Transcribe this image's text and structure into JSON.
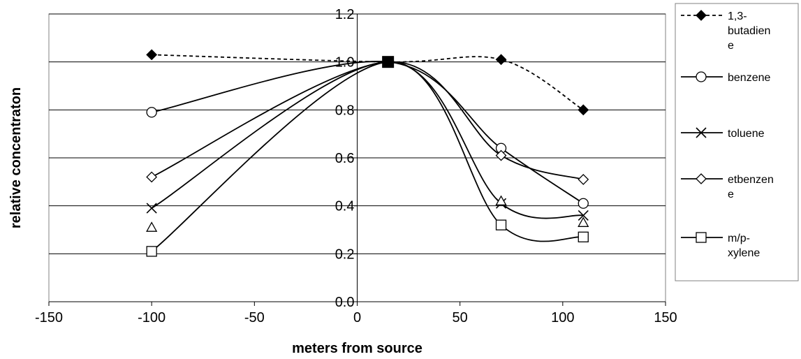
{
  "chart_data": {
    "type": "line",
    "title": "",
    "xlabel": "meters from source",
    "ylabel": "relative concentraton",
    "xlim": [
      -150,
      150
    ],
    "ylim": [
      0,
      1.2
    ],
    "x_ticks": [
      "-150",
      "-100",
      "-50",
      "0",
      "50",
      "100",
      "150"
    ],
    "y_ticks": [
      "0.0",
      "0.2",
      "0.4",
      "0.6",
      "0.8",
      "1.0",
      "1.2"
    ],
    "grid": "horizontal",
    "legend_position": "right",
    "x": [
      -100,
      15,
      70,
      110
    ],
    "series": [
      {
        "name": "1,3-butadiene",
        "legend_lines": [
          "1,3-",
          "butadien",
          "e"
        ],
        "marker": "filled-diamond",
        "dashed": true,
        "values": [
          1.03,
          1.0,
          1.01,
          0.8
        ]
      },
      {
        "name": "benzene",
        "legend_lines": [
          "benzene"
        ],
        "marker": "circle",
        "dashed": false,
        "values": [
          0.79,
          1.0,
          0.64,
          0.41
        ]
      },
      {
        "name": "toluene",
        "legend_lines": [
          "toluene"
        ],
        "marker": "x",
        "dashed": false,
        "values": [
          0.39,
          1.0,
          0.41,
          0.36
        ]
      },
      {
        "name": "etbenzene",
        "legend_lines": [
          "etbenzen",
          "e"
        ],
        "marker": "diamond",
        "dashed": false,
        "values": [
          0.52,
          1.0,
          0.61,
          0.51
        ]
      },
      {
        "name": "m/p-xylene",
        "legend_lines": [
          "m/p-",
          "xylene"
        ],
        "marker": "square",
        "dashed": false,
        "values": [
          0.21,
          1.0,
          0.32,
          0.27
        ]
      }
    ],
    "extra_markers": [
      {
        "marker": "triangle",
        "points": [
          [
            -100,
            0.31
          ],
          [
            70,
            0.42
          ],
          [
            110,
            0.33
          ]
        ]
      }
    ]
  }
}
